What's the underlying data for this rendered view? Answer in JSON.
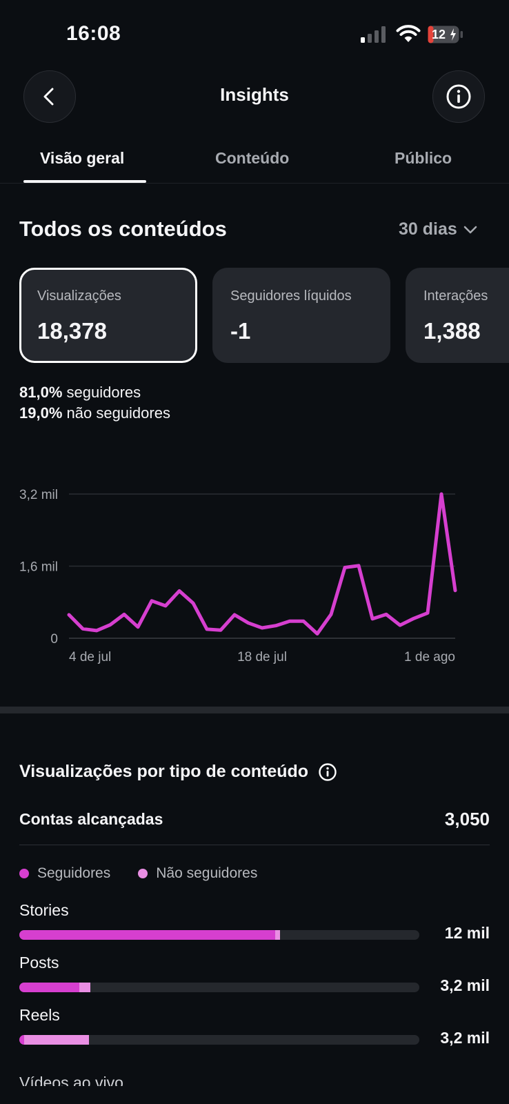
{
  "status": {
    "time": "16:08",
    "battery": "12"
  },
  "header": {
    "title": "Insights"
  },
  "tabs": [
    {
      "label": "Visão geral",
      "active": true
    },
    {
      "label": "Conteúdo",
      "active": false
    },
    {
      "label": "Público",
      "active": false
    }
  ],
  "overview": {
    "title": "Todos os conteúdos",
    "range": "30 dias",
    "cards": [
      {
        "label": "Visualizações",
        "value": "18,378",
        "selected": true
      },
      {
        "label": "Seguidores líquidos",
        "value": "-1",
        "selected": false
      },
      {
        "label": "Interações",
        "value": "1,388",
        "selected": false
      }
    ],
    "split": [
      {
        "pct": "81,0%",
        "label": "seguidores"
      },
      {
        "pct": "19,0%",
        "label": "não seguidores"
      }
    ]
  },
  "chart_data": {
    "type": "line",
    "title": "",
    "xlabel": "",
    "ylabel": "",
    "ylim": [
      0,
      3200
    ],
    "y_ticks": [
      {
        "value": 0,
        "label": "0"
      },
      {
        "value": 1600,
        "label": "1,6 mil"
      },
      {
        "value": 3200,
        "label": "3,2 mil"
      }
    ],
    "x_ticks": [
      {
        "index": 0,
        "label": "4 de jul"
      },
      {
        "index": 14,
        "label": "18 de jul"
      },
      {
        "index": 28,
        "label": "1 de ago"
      }
    ],
    "grid": true,
    "color": "#d63fcf",
    "series": [
      {
        "values": [
          520,
          210,
          170,
          300,
          530,
          250,
          830,
          720,
          1050,
          780,
          200,
          180,
          520,
          340,
          230,
          280,
          380,
          380,
          100,
          530,
          1570,
          1610,
          430,
          530,
          290,
          440,
          560,
          3200,
          1060
        ]
      }
    ]
  },
  "breakdown": {
    "title": "Visualizações por tipo de conteúdo",
    "reach_label": "Contas alcançadas",
    "reach_value": "3,050",
    "legend": [
      {
        "label": "Seguidores",
        "color": "#d63fcf"
      },
      {
        "label": "Não seguidores",
        "color": "#e98ee3"
      }
    ],
    "bars": [
      {
        "label": "Stories",
        "value": "12 mil",
        "followers": 0.64,
        "non_followers": 0.012
      },
      {
        "label": "Posts",
        "value": "3,2 mil",
        "followers": 0.15,
        "non_followers": 0.027
      },
      {
        "label": "Reels",
        "value": "3,2 mil",
        "followers": 0.012,
        "non_followers": 0.163
      }
    ],
    "partial_label": "Vídeos ao vivo"
  }
}
